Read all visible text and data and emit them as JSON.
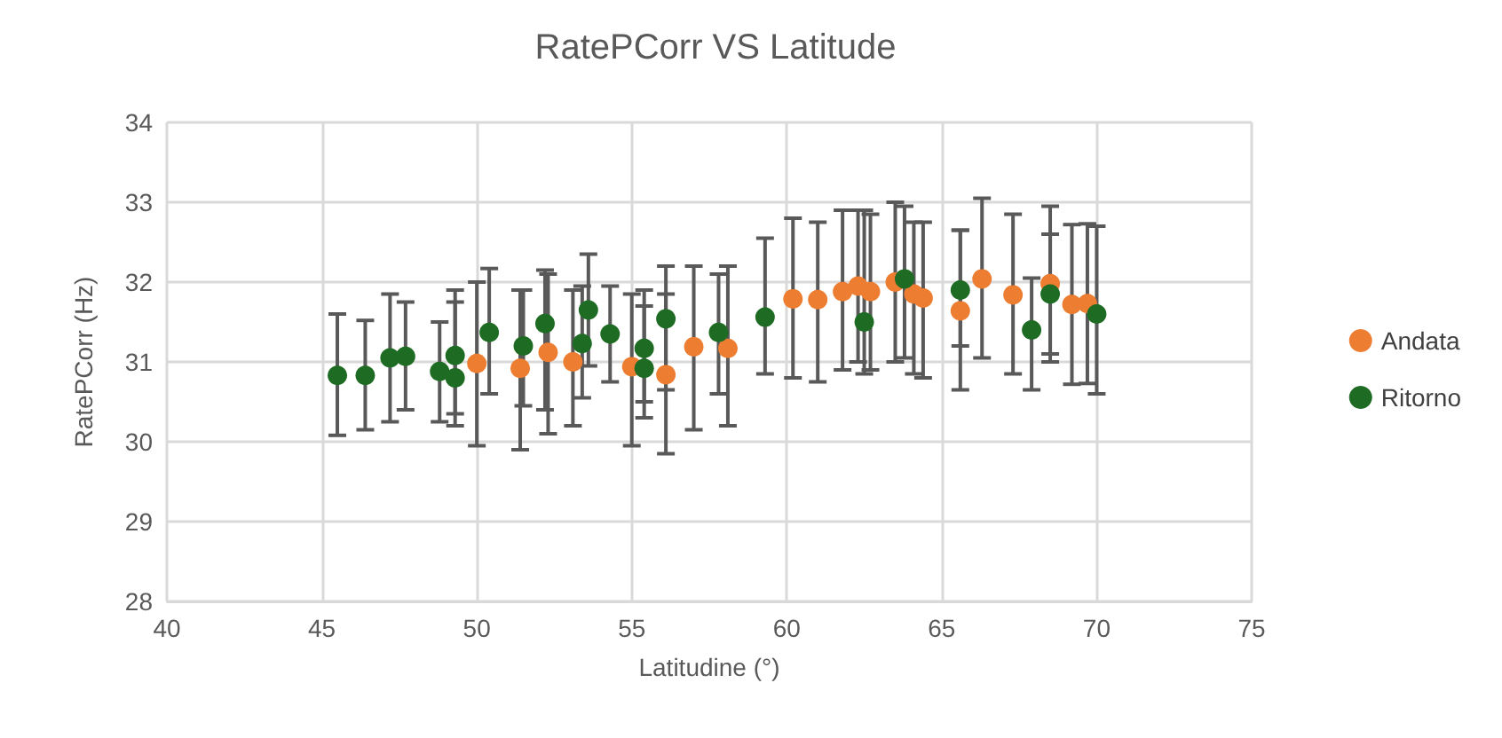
{
  "chart_data": {
    "type": "scatter",
    "title": "RatePCorr VS Latitude",
    "xlabel": "Latitudine (°)",
    "ylabel": "RatePCorr (Hz)",
    "xlim": [
      40,
      75
    ],
    "xticks": [
      40,
      45,
      50,
      55,
      60,
      65,
      70,
      75
    ],
    "ylim": [
      28,
      34
    ],
    "yticks": [
      28,
      29,
      30,
      31,
      32,
      33,
      34
    ],
    "grid": true,
    "legend": "right",
    "marker": "circle",
    "series": [
      {
        "name": "Andata",
        "color": "#ed7d31",
        "x": [
          50.0,
          51.4,
          52.3,
          53.1,
          55.0,
          56.1,
          57.0,
          58.1,
          60.2,
          61.0,
          61.8,
          62.3,
          62.7,
          63.5,
          64.1,
          64.4,
          65.6,
          66.3,
          67.3,
          68.5,
          69.2,
          69.7
        ],
        "values": [
          30.98,
          30.92,
          31.12,
          31.0,
          30.94,
          30.84,
          31.19,
          31.17,
          31.79,
          31.78,
          31.88,
          31.95,
          31.88,
          32.0,
          31.85,
          31.8,
          31.64,
          32.04,
          31.84,
          31.98,
          31.72,
          31.73
        ],
        "errors": [
          [
            29.95,
            32.0
          ],
          [
            29.9,
            31.9
          ],
          [
            30.1,
            32.1
          ],
          [
            30.2,
            31.9
          ],
          [
            29.95,
            31.85
          ],
          [
            29.85,
            31.85
          ],
          [
            30.15,
            32.2
          ],
          [
            30.2,
            32.2
          ],
          [
            30.8,
            32.8
          ],
          [
            30.75,
            32.75
          ],
          [
            30.9,
            32.9
          ],
          [
            31.0,
            32.9
          ],
          [
            30.9,
            32.85
          ],
          [
            31.0,
            33.0
          ],
          [
            30.85,
            32.75
          ],
          [
            30.8,
            32.75
          ],
          [
            30.65,
            32.65
          ],
          [
            31.05,
            33.05
          ],
          [
            30.85,
            32.85
          ],
          [
            31.0,
            32.95
          ],
          [
            30.72,
            32.72
          ],
          [
            30.73,
            32.73
          ]
        ]
      },
      {
        "name": "Ritorno",
        "color": "#1e6b23",
        "x": [
          45.5,
          46.4,
          47.2,
          47.7,
          48.8,
          49.3,
          49.3,
          50.4,
          51.5,
          52.2,
          53.4,
          53.6,
          54.3,
          55.4,
          55.4,
          56.1,
          57.8,
          59.3,
          62.5,
          63.8,
          65.6,
          67.9,
          68.5,
          70.0
        ],
        "values": [
          30.83,
          30.83,
          31.05,
          31.07,
          30.88,
          31.08,
          30.8,
          31.37,
          31.2,
          31.48,
          31.23,
          31.65,
          31.35,
          31.17,
          30.92,
          31.54,
          31.37,
          31.56,
          31.5,
          32.04,
          31.9,
          31.4,
          31.85,
          31.6
        ],
        "errors": [
          [
            30.08,
            31.6
          ],
          [
            30.15,
            31.52
          ],
          [
            30.25,
            31.85
          ],
          [
            30.4,
            31.75
          ],
          [
            30.25,
            31.5
          ],
          [
            30.35,
            31.9
          ],
          [
            30.2,
            31.75
          ],
          [
            30.6,
            32.17
          ],
          [
            30.45,
            31.9
          ],
          [
            30.4,
            32.15
          ],
          [
            30.55,
            31.95
          ],
          [
            30.95,
            32.35
          ],
          [
            30.75,
            31.95
          ],
          [
            30.5,
            31.9
          ],
          [
            30.3,
            31.7
          ],
          [
            30.65,
            32.2
          ],
          [
            30.6,
            32.1
          ],
          [
            30.85,
            32.55
          ],
          [
            30.85,
            32.9
          ],
          [
            31.05,
            32.95
          ],
          [
            31.2,
            32.65
          ],
          [
            30.65,
            32.05
          ],
          [
            31.1,
            32.6
          ],
          [
            30.6,
            32.7
          ]
        ]
      }
    ]
  }
}
